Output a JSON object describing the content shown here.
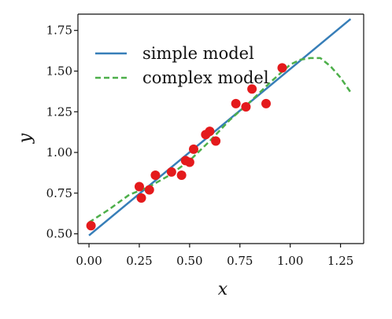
{
  "chart_data": {
    "type": "scatter",
    "xlabel": "x",
    "ylabel": "y",
    "xlim": [
      -0.055,
      1.365
    ],
    "ylim": [
      0.44,
      1.85
    ],
    "x_ticks": [
      "0.00",
      "0.25",
      "0.50",
      "0.75",
      "1.00",
      "1.25"
    ],
    "y_ticks": [
      "0.50",
      "0.75",
      "1.00",
      "1.25",
      "1.50",
      "1.75"
    ],
    "grid": false,
    "legend_position": "top-left",
    "points": {
      "color": "#e41a1c",
      "x": [
        0.01,
        0.25,
        0.26,
        0.3,
        0.33,
        0.41,
        0.46,
        0.48,
        0.5,
        0.52,
        0.58,
        0.6,
        0.63,
        0.73,
        0.78,
        0.81,
        0.88,
        0.96
      ],
      "y": [
        0.55,
        0.79,
        0.72,
        0.77,
        0.86,
        0.88,
        0.86,
        0.95,
        0.94,
        1.02,
        1.11,
        1.13,
        1.07,
        1.3,
        1.28,
        1.39,
        1.3,
        1.52
      ]
    },
    "series": [
      {
        "name": "simple model",
        "type": "line",
        "style": "solid",
        "color": "#377eb8",
        "x": [
          0.0,
          1.3
        ],
        "y": [
          0.49,
          1.82
        ]
      },
      {
        "name": "complex model",
        "type": "line",
        "style": "dashed",
        "color": "#4daf4a",
        "x": [
          0.0,
          0.1,
          0.2,
          0.3,
          0.4,
          0.5,
          0.6,
          0.7,
          0.8,
          0.9,
          1.0,
          1.05,
          1.1,
          1.15,
          1.2,
          1.25,
          1.3
        ],
        "y": [
          0.57,
          0.65,
          0.74,
          0.79,
          0.86,
          0.95,
          1.07,
          1.2,
          1.31,
          1.43,
          1.54,
          1.57,
          1.58,
          1.58,
          1.53,
          1.46,
          1.37
        ]
      }
    ]
  }
}
